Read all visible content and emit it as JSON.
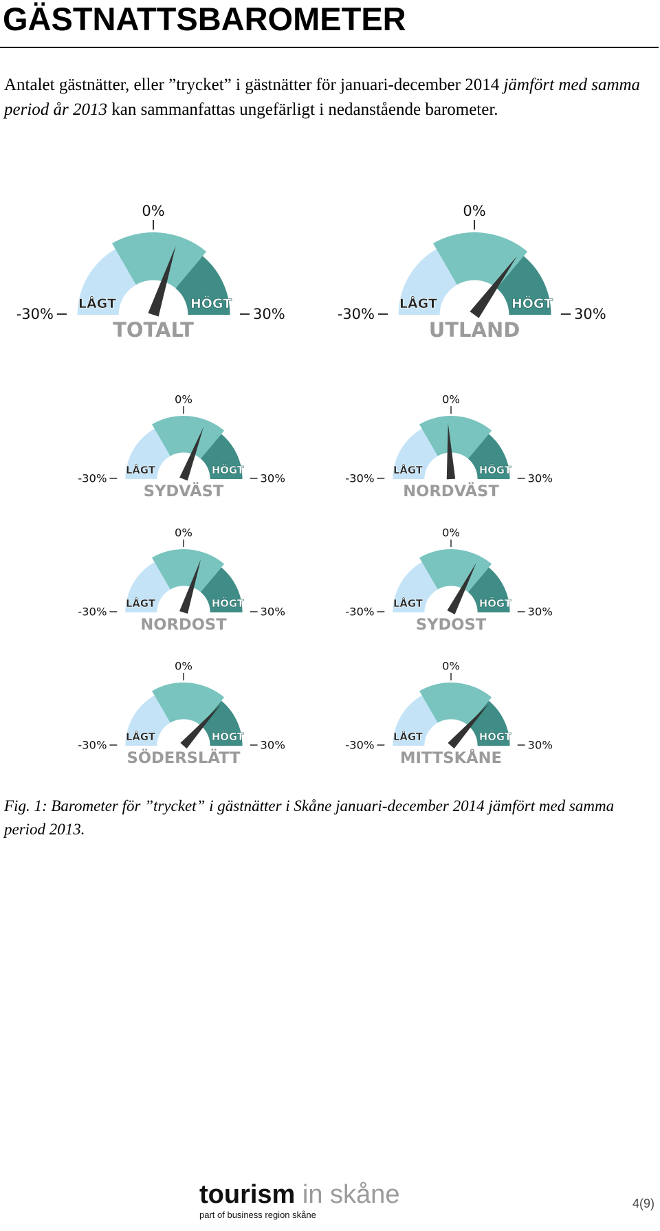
{
  "document": {
    "title": "GÄSTNATTSBAROMETER",
    "intro": {
      "part1": "Antalet gästnätter, eller ”trycket” i gästnätter för januari-december 2014 ",
      "part2_italic": "jämfört med samma period år 2013",
      "part3": " kan sammanfattas ungefärligt i nedanstående barometer."
    },
    "caption": "Fig. 1: Barometer för ”trycket” i gästnätter i Skåne januari-december 2014 jämfört med samma period 2013.",
    "footer": {
      "logo_bold": "tourism",
      "logo_light": " in skåne",
      "logo_tagline": "part of business region skåne",
      "page_number": "4(9)"
    }
  },
  "gauge_labels": {
    "zero": "0%",
    "min": "-30%",
    "max": "30%",
    "low": "LÅGT",
    "high": "HÖGT"
  },
  "colors": {
    "low_zone": "#c4e3f7",
    "mid_zone": "#79c4bf",
    "high_zone": "#3f8d86",
    "needle": "#333333",
    "name_text": "#9b9b9b"
  },
  "chart_data": {
    "type": "gauge",
    "range": [
      -30,
      30
    ],
    "unit": "%",
    "gauges": [
      {
        "name": "TOTALT",
        "value": 6
      },
      {
        "name": "UTLAND",
        "value": 12
      },
      {
        "name": "SYDVÄST",
        "value": 7
      },
      {
        "name": "NORDVÄST",
        "value": -1
      },
      {
        "name": "NORDOST",
        "value": 6
      },
      {
        "name": "SYDOST",
        "value": 9
      },
      {
        "name": "SÖDERSLÄTT",
        "value": 14
      },
      {
        "name": "MITTSKÅNE",
        "value": 14
      }
    ]
  }
}
